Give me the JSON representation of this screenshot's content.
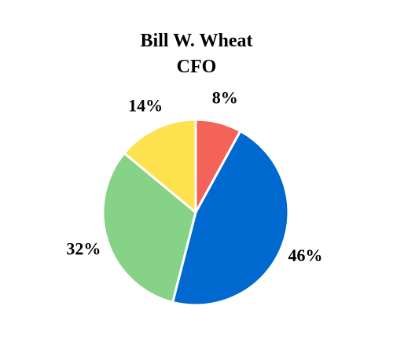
{
  "chart_data": {
    "type": "pie",
    "title_lines": [
      "Bill W. Wheat",
      "CFO"
    ],
    "slices": [
      {
        "label": "8%",
        "value": 8,
        "color": "#F4635A"
      },
      {
        "label": "46%",
        "value": 46,
        "color": "#0069CF"
      },
      {
        "label": "32%",
        "value": 32,
        "color": "#86D286"
      },
      {
        "label": "14%",
        "value": 14,
        "color": "#FDE14E"
      }
    ],
    "start_angle_deg": 0,
    "direction": "clockwise",
    "legend": "none",
    "slice_border_color": "#FFFFFF"
  }
}
